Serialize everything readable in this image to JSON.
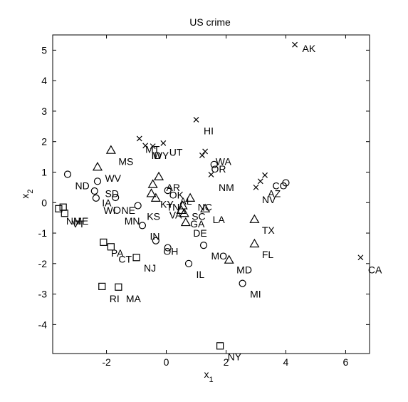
{
  "chart_data": {
    "type": "scatter",
    "title": "US crime",
    "xlabel": "x",
    "xlabel_sub": "1",
    "ylabel": "x",
    "ylabel_sub": "2",
    "xlim": [
      -3.8,
      6.8
    ],
    "ylim": [
      -4.95,
      5.5
    ],
    "xticks": [
      -2,
      0,
      2,
      4,
      6
    ],
    "yticks": [
      -4,
      -3,
      -2,
      -1,
      0,
      1,
      2,
      3,
      4,
      5
    ],
    "grid": false,
    "legend": "none",
    "points": [
      {
        "label": "AK",
        "x": 4.3,
        "y": 5.18,
        "marker": "cross"
      },
      {
        "label": "HI",
        "x": 1.0,
        "y": 2.72,
        "marker": "cross"
      },
      {
        "label": "MT",
        "x": -0.9,
        "y": 2.1,
        "marker": "cross"
      },
      {
        "label": "ID",
        "x": -0.7,
        "y": 1.87,
        "marker": "cross"
      },
      {
        "label": "WY",
        "x": -0.45,
        "y": 1.85,
        "marker": "cross"
      },
      {
        "label": "UT",
        "x": -0.1,
        "y": 1.95,
        "marker": "cross"
      },
      {
        "label": "WA",
        "x": 1.3,
        "y": 1.68,
        "marker": "cross"
      },
      {
        "label": "OR",
        "x": 1.2,
        "y": 1.55,
        "marker": "cross"
      },
      {
        "label": "NM",
        "x": 1.5,
        "y": 0.92,
        "marker": "cross"
      },
      {
        "label": "NV",
        "x": 3.0,
        "y": 0.5,
        "marker": "cross"
      },
      {
        "label": "AZ",
        "x": 3.15,
        "y": 0.7,
        "marker": "cross"
      },
      {
        "label": "CO",
        "x": 3.3,
        "y": 0.9,
        "marker": "cross"
      },
      {
        "label": "CA",
        "x": 6.5,
        "y": -1.8,
        "marker": "cross"
      },
      {
        "label": "MS",
        "x": -1.85,
        "y": 1.72,
        "marker": "triangle"
      },
      {
        "label": "WV",
        "x": -2.3,
        "y": 1.17,
        "marker": "triangle"
      },
      {
        "label": "AR",
        "x": -0.25,
        "y": 0.85,
        "marker": "triangle"
      },
      {
        "label": "KY",
        "x": -0.45,
        "y": 0.6,
        "marker": "triangle"
      },
      {
        "label": "AL",
        "x": -0.5,
        "y": 0.3,
        "marker": "triangle"
      },
      {
        "label": "TN",
        "x": -0.35,
        "y": 0.15,
        "marker": "triangle"
      },
      {
        "label": "VA",
        "x": 0.5,
        "y": -0.25,
        "marker": "triangle"
      },
      {
        "label": "NC",
        "x": 0.8,
        "y": 0.15,
        "marker": "triangle"
      },
      {
        "label": "SC",
        "x": 0.55,
        "y": -0.1,
        "marker": "triangle"
      },
      {
        "label": "GA",
        "x": 0.6,
        "y": -0.35,
        "marker": "triangle"
      },
      {
        "label": "LA",
        "x": 1.3,
        "y": -0.2,
        "marker": "triangle"
      },
      {
        "label": "DE",
        "x": 0.65,
        "y": -0.65,
        "marker": "triangle"
      },
      {
        "label": "TX",
        "x": 2.95,
        "y": -0.55,
        "marker": "triangle"
      },
      {
        "label": "FL",
        "x": 2.95,
        "y": -1.35,
        "marker": "triangle"
      },
      {
        "label": "MD",
        "x": 2.1,
        "y": -1.88,
        "marker": "triangle"
      },
      {
        "label": "ND",
        "x": -3.3,
        "y": 0.93,
        "marker": "circle"
      },
      {
        "label": "SD",
        "x": -2.3,
        "y": 0.7,
        "marker": "circle"
      },
      {
        "label": "IA",
        "x": -2.4,
        "y": 0.38,
        "marker": "circle"
      },
      {
        "label": "WI",
        "x": -2.35,
        "y": 0.15,
        "marker": "circle"
      },
      {
        "label": "NE",
        "x": -1.7,
        "y": 0.17,
        "marker": "circle"
      },
      {
        "label": "MN",
        "x": -1.65,
        "y": -0.25,
        "marker": "circle"
      },
      {
        "label": "KS",
        "x": -0.95,
        "y": -0.1,
        "marker": "circle"
      },
      {
        "label": "OK",
        "x": 0.05,
        "y": 0.4,
        "marker": "circle"
      },
      {
        "label": "MO",
        "x": 1.25,
        "y": -1.4,
        "marker": "circle"
      },
      {
        "label": "IN",
        "x": -0.8,
        "y": -0.75,
        "marker": "circle"
      },
      {
        "label": "OH",
        "x": -0.35,
        "y": -1.25,
        "marker": "circle"
      },
      {
        "label": "PA",
        "x": 0.05,
        "y": -1.48,
        "marker": "circle"
      },
      {
        "label": "IL",
        "x": 0.75,
        "y": -2.0,
        "marker": "circle"
      },
      {
        "label": "MI",
        "x": 2.55,
        "y": -2.65,
        "marker": "circle"
      },
      {
        "label": "OR",
        "x": 1.6,
        "y": 1.25,
        "marker": "circle"
      },
      {
        "label": "CO",
        "x": 4.0,
        "y": 0.65,
        "marker": "circle"
      },
      {
        "label": "ME",
        "x": -3.6,
        "y": -0.2,
        "marker": "square"
      },
      {
        "label": "NH",
        "x": -3.45,
        "y": -0.15,
        "marker": "square"
      },
      {
        "label": "VT",
        "x": -3.4,
        "y": -0.35,
        "marker": "square"
      },
      {
        "label": "PA",
        "x": -2.1,
        "y": -1.3,
        "marker": "square"
      },
      {
        "label": "CT",
        "x": -1.85,
        "y": -1.45,
        "marker": "square"
      },
      {
        "label": "NJ",
        "x": -1.0,
        "y": -1.8,
        "marker": "square"
      },
      {
        "label": "RI",
        "x": -2.15,
        "y": -2.75,
        "marker": "square"
      },
      {
        "label": "MA",
        "x": -1.6,
        "y": -2.77,
        "marker": "square"
      },
      {
        "label": "NY",
        "x": 1.8,
        "y": -4.7,
        "marker": "square"
      }
    ],
    "labels": [
      {
        "text": "AK",
        "x": 4.55,
        "y": 5.05
      },
      {
        "text": "HI",
        "x": 1.25,
        "y": 2.35
      },
      {
        "text": "MT",
        "x": -0.7,
        "y": 1.75
      },
      {
        "text": "ID",
        "x": -0.5,
        "y": 1.55
      },
      {
        "text": "WY",
        "x": -0.45,
        "y": 1.55
      },
      {
        "text": "UT",
        "x": 0.1,
        "y": 1.65
      },
      {
        "text": "WA",
        "x": 1.65,
        "y": 1.35
      },
      {
        "text": "OR",
        "x": 1.5,
        "y": 1.1
      },
      {
        "text": "NM",
        "x": 1.75,
        "y": 0.5
      },
      {
        "text": "CO",
        "x": 3.55,
        "y": 0.55
      },
      {
        "text": "AZ",
        "x": 3.4,
        "y": 0.3
      },
      {
        "text": "NV",
        "x": 3.2,
        "y": 0.1
      },
      {
        "text": "CA",
        "x": 6.75,
        "y": -2.2
      },
      {
        "text": "MS",
        "x": -1.6,
        "y": 1.35
      },
      {
        "text": "WV",
        "x": -2.05,
        "y": 0.8
      },
      {
        "text": "ND",
        "x": -3.05,
        "y": 0.55
      },
      {
        "text": "SD",
        "x": -2.05,
        "y": 0.3
      },
      {
        "text": "IA",
        "x": -2.15,
        "y": 0.0
      },
      {
        "text": "WI",
        "x": -2.1,
        "y": -0.25
      },
      {
        "text": "NE",
        "x": -1.5,
        "y": -0.25
      },
      {
        "text": "MN",
        "x": -1.4,
        "y": -0.6
      },
      {
        "text": "KS",
        "x": -0.65,
        "y": -0.45
      },
      {
        "text": "AR",
        "x": 0.0,
        "y": 0.5
      },
      {
        "text": "OK",
        "x": 0.1,
        "y": 0.25
      },
      {
        "text": "KY",
        "x": -0.2,
        "y": -0.05
      },
      {
        "text": "TN",
        "x": 0.0,
        "y": -0.15
      },
      {
        "text": "AL",
        "x": 0.45,
        "y": 0.05
      },
      {
        "text": "VA",
        "x": 0.1,
        "y": -0.4
      },
      {
        "text": "SC",
        "x": 0.85,
        "y": -0.45
      },
      {
        "text": "NC",
        "x": 1.05,
        "y": -0.15
      },
      {
        "text": "GA",
        "x": 0.8,
        "y": -0.7
      },
      {
        "text": "LA",
        "x": 1.55,
        "y": -0.55
      },
      {
        "text": "DE",
        "x": 0.9,
        "y": -1.0
      },
      {
        "text": "IN",
        "x": -0.55,
        "y": -1.1
      },
      {
        "text": "OH",
        "x": -0.1,
        "y": -1.6
      },
      {
        "text": "TX",
        "x": 3.2,
        "y": -0.9
      },
      {
        "text": "FL",
        "x": 3.2,
        "y": -1.7
      },
      {
        "text": "MO",
        "x": 1.5,
        "y": -1.75
      },
      {
        "text": "MD",
        "x": 2.35,
        "y": -2.2
      },
      {
        "text": "IL",
        "x": 1.0,
        "y": -2.35
      },
      {
        "text": "MI",
        "x": 2.8,
        "y": -3.0
      },
      {
        "text": "NH",
        "x": -3.35,
        "y": -0.6
      },
      {
        "text": "ME",
        "x": -3.1,
        "y": -0.6
      },
      {
        "text": "VT",
        "x": -3.15,
        "y": -0.7
      },
      {
        "text": "PA",
        "x": -1.85,
        "y": -1.65
      },
      {
        "text": "CT",
        "x": -1.6,
        "y": -1.85
      },
      {
        "text": "NJ",
        "x": -0.75,
        "y": -2.15
      },
      {
        "text": "RI",
        "x": -1.9,
        "y": -3.15
      },
      {
        "text": "MA",
        "x": -1.35,
        "y": -3.15
      },
      {
        "text": "NY",
        "x": 2.05,
        "y": -5.05
      }
    ]
  }
}
